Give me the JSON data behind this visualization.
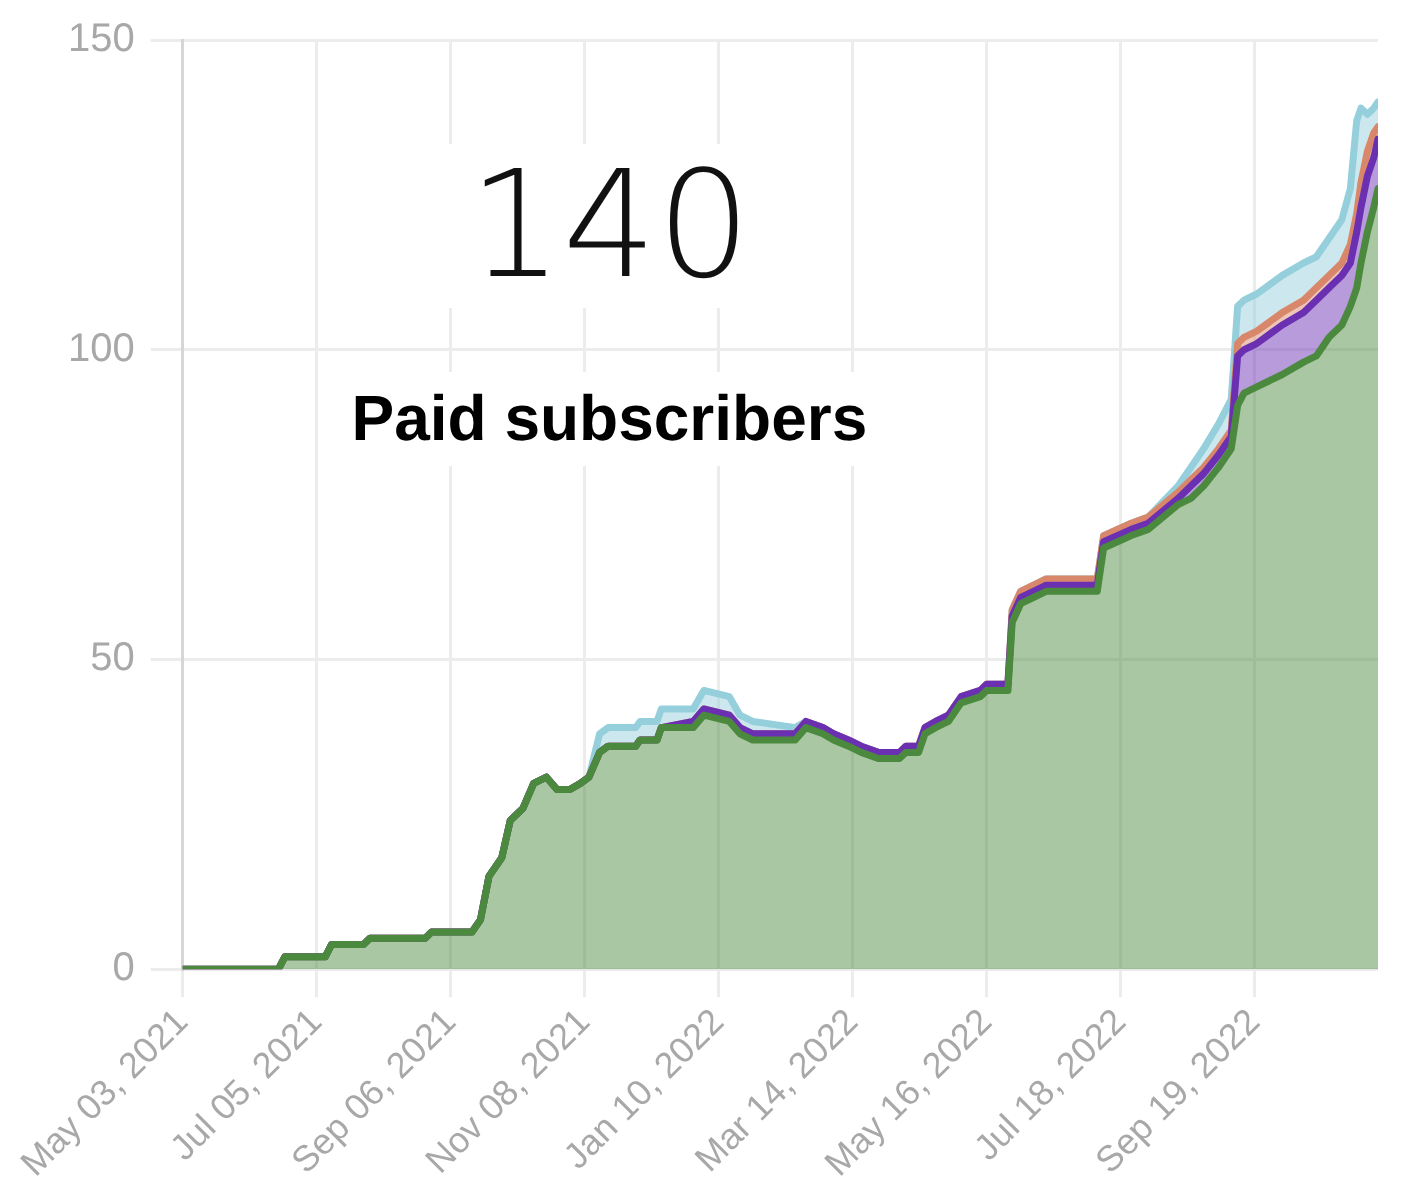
{
  "chart_data": {
    "type": "area",
    "title": "140",
    "subtitle": "Paid subscribers",
    "stacked": true,
    "grid": true,
    "marker": "none",
    "x": [
      "2021-05-03",
      "2021-06-17",
      "2021-06-20",
      "2021-07-09",
      "2021-07-12",
      "2021-07-27",
      "2021-07-30",
      "2021-08-25",
      "2021-08-28",
      "2021-09-16",
      "2021-09-20",
      "2021-09-24",
      "2021-09-30",
      "2021-10-04",
      "2021-10-10",
      "2021-10-15",
      "2021-10-21",
      "2021-10-26",
      "2021-11-01",
      "2021-11-06",
      "2021-11-10",
      "2021-11-15",
      "2021-11-19",
      "2021-12-02",
      "2021-12-04",
      "2021-12-12",
      "2021-12-14",
      "2021-12-29",
      "2022-01-03",
      "2022-01-15",
      "2022-01-20",
      "2022-01-26",
      "2022-02-15",
      "2022-02-20",
      "2022-02-28",
      "2022-03-05",
      "2022-03-12",
      "2022-03-18",
      "2022-03-26",
      "2022-04-05",
      "2022-04-08",
      "2022-04-14",
      "2022-04-17",
      "2022-04-22",
      "2022-04-28",
      "2022-05-04",
      "2022-05-13",
      "2022-05-16",
      "2022-05-26",
      "2022-05-28",
      "2022-06-01",
      "2022-06-07",
      "2022-06-13",
      "2022-07-07",
      "2022-07-10",
      "2022-07-23",
      "2022-07-31",
      "2022-08-14",
      "2022-08-20",
      "2022-08-26",
      "2022-09-02",
      "2022-09-08",
      "2022-09-11",
      "2022-09-14",
      "2022-09-20",
      "2022-10-02",
      "2022-10-12",
      "2022-10-18",
      "2022-10-24",
      "2022-10-30",
      "2022-11-03",
      "2022-11-06",
      "2022-11-08",
      "2022-11-11",
      "2022-11-14",
      "2022-11-16"
    ],
    "series": [
      {
        "color": "#4b8a3e",
        "values": [
          0,
          0,
          2,
          2,
          4,
          4,
          5,
          5,
          6,
          6,
          8,
          15,
          18,
          24,
          26,
          30,
          31,
          29,
          29,
          30,
          31,
          35,
          36,
          36,
          37,
          37,
          39,
          39,
          41,
          40,
          38,
          37,
          37,
          39,
          38,
          37,
          36,
          35,
          34,
          34,
          35,
          35,
          38,
          39,
          40,
          43,
          44,
          45,
          45,
          56,
          59,
          60,
          61,
          61,
          68,
          70,
          71,
          75,
          76,
          78,
          81,
          84,
          91,
          93,
          94,
          96,
          98,
          99,
          102,
          104,
          107,
          110,
          114,
          119,
          123,
          126
        ]
      },
      {
        "color": "#6b2fb2",
        "values": [
          0,
          0,
          0,
          0,
          0,
          0,
          0,
          0,
          0,
          0,
          0,
          0,
          0,
          0,
          0,
          0,
          0,
          0,
          0,
          0,
          0,
          0,
          0,
          0,
          0,
          0,
          0,
          1,
          1,
          1,
          1,
          1,
          1,
          1,
          1,
          1,
          1,
          1,
          1,
          1,
          1,
          1,
          1,
          1,
          1,
          1,
          1,
          1,
          1,
          1,
          1,
          1,
          1,
          1,
          1,
          1,
          1,
          1,
          2,
          2,
          2,
          2,
          8,
          7,
          7,
          8,
          8,
          9,
          8,
          8,
          7,
          9,
          9,
          9,
          8,
          8
        ]
      },
      {
        "color": "#d9876b",
        "values": [
          0,
          0,
          0,
          0,
          0,
          0,
          0,
          0,
          0,
          0,
          0,
          0,
          0,
          0,
          0,
          0,
          0,
          0,
          0,
          0,
          0,
          0,
          0,
          0,
          0,
          0,
          0,
          0,
          0,
          0,
          0,
          0,
          0,
          0,
          0,
          0,
          0,
          0,
          0,
          0,
          0,
          0,
          0,
          0,
          0,
          0,
          0,
          0,
          0,
          1,
          1,
          1,
          1,
          1,
          1,
          1,
          1,
          1,
          1,
          1,
          1,
          1,
          2,
          2,
          2,
          2,
          2,
          2,
          2,
          2,
          3,
          3,
          4,
          4,
          4,
          2
        ]
      },
      {
        "color": "#95cfdc",
        "values": [
          0,
          0,
          0,
          0,
          0,
          0,
          0,
          0,
          0,
          0,
          0,
          0,
          0,
          0,
          0,
          0,
          0,
          0,
          0,
          0,
          0,
          3,
          3,
          3,
          3,
          3,
          3,
          2,
          3,
          3,
          2,
          2,
          1,
          0,
          0,
          0,
          0,
          0,
          0,
          0,
          0,
          0,
          0,
          0,
          0,
          0,
          0,
          0,
          0,
          0,
          0,
          0,
          0,
          0,
          0,
          0,
          0,
          1,
          2,
          3,
          4,
          5,
          6,
          6,
          6,
          6,
          6,
          5,
          6,
          7,
          9,
          15,
          12,
          6,
          4,
          4
        ]
      }
    ],
    "xlim": [
      "2021-05-03",
      "2022-11-16"
    ],
    "xticks": [
      {
        "value": "2021-05-03",
        "label": "May 03, 2021"
      },
      {
        "value": "2021-07-05",
        "label": "Jul 05, 2021"
      },
      {
        "value": "2021-09-06",
        "label": "Sep 06, 2021"
      },
      {
        "value": "2021-11-08",
        "label": "Nov 08, 2021"
      },
      {
        "value": "2022-01-10",
        "label": "Jan 10, 2022"
      },
      {
        "value": "2022-03-14",
        "label": "Mar 14, 2022"
      },
      {
        "value": "2022-05-16",
        "label": "May 16, 2022"
      },
      {
        "value": "2022-07-18",
        "label": "Jul 18, 2022"
      },
      {
        "value": "2022-09-19",
        "label": "Sep 19, 2022"
      }
    ],
    "ylim": [
      0,
      150
    ],
    "yticks": [
      0,
      50,
      100,
      150
    ]
  }
}
